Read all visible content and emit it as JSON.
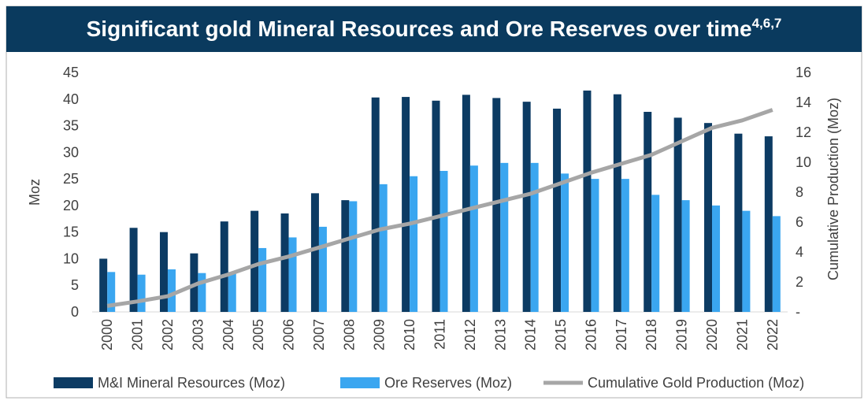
{
  "chart_data": {
    "type": "bar",
    "title": "Significant gold Mineral Resources and Ore Reserves over time",
    "title_superscript": "4,6,7",
    "ylabel": "Moz",
    "y2label": "Cumulative Production (Moz)",
    "categories": [
      "2000",
      "2001",
      "2002",
      "2003",
      "2004",
      "2005",
      "2006",
      "2007",
      "2008",
      "2009",
      "2010",
      "2011",
      "2012",
      "2013",
      "2014",
      "2015",
      "2016",
      "2017",
      "2018",
      "2019",
      "2020",
      "2021",
      "2022"
    ],
    "series": [
      {
        "name": "M&I Mineral Resources (Moz)",
        "color": "#0c3b63",
        "type": "bar",
        "values": [
          10,
          15.8,
          15,
          11,
          17,
          19,
          18.5,
          22.3,
          21,
          40.3,
          40.4,
          39.7,
          40.8,
          40.2,
          39.5,
          38.2,
          41.6,
          40.9,
          37.6,
          36.5,
          35.5,
          33.5,
          33
        ]
      },
      {
        "name": "Ore Reserves (Moz)",
        "color": "#3aa6f0",
        "type": "bar",
        "values": [
          7.5,
          7,
          8,
          7.3,
          7.5,
          12,
          14,
          16,
          20.8,
          24,
          25.5,
          26.5,
          27.5,
          28,
          28,
          26,
          25,
          25,
          22,
          21,
          20,
          19,
          18
        ]
      },
      {
        "name": "Cumulative Gold Production (Moz)",
        "color": "#a6a6a6",
        "type": "line",
        "axis": "y2",
        "values": [
          0.4,
          0.7,
          1.05,
          1.9,
          2.5,
          3.2,
          3.7,
          4.3,
          4.9,
          5.5,
          5.9,
          6.4,
          6.9,
          7.4,
          7.9,
          8.6,
          9.3,
          9.9,
          10.5,
          11.4,
          12.3,
          12.8,
          13.5
        ]
      }
    ],
    "ylim": [
      0,
      45
    ],
    "yticks": [
      0,
      5,
      10,
      15,
      20,
      25,
      30,
      35,
      40,
      45
    ],
    "y2lim": [
      0,
      16
    ],
    "y2ticks": [
      {
        "value": 0,
        "label": "-"
      },
      2,
      4,
      6,
      8,
      10,
      12,
      14,
      16
    ],
    "grid": false,
    "legend": "bottom"
  }
}
